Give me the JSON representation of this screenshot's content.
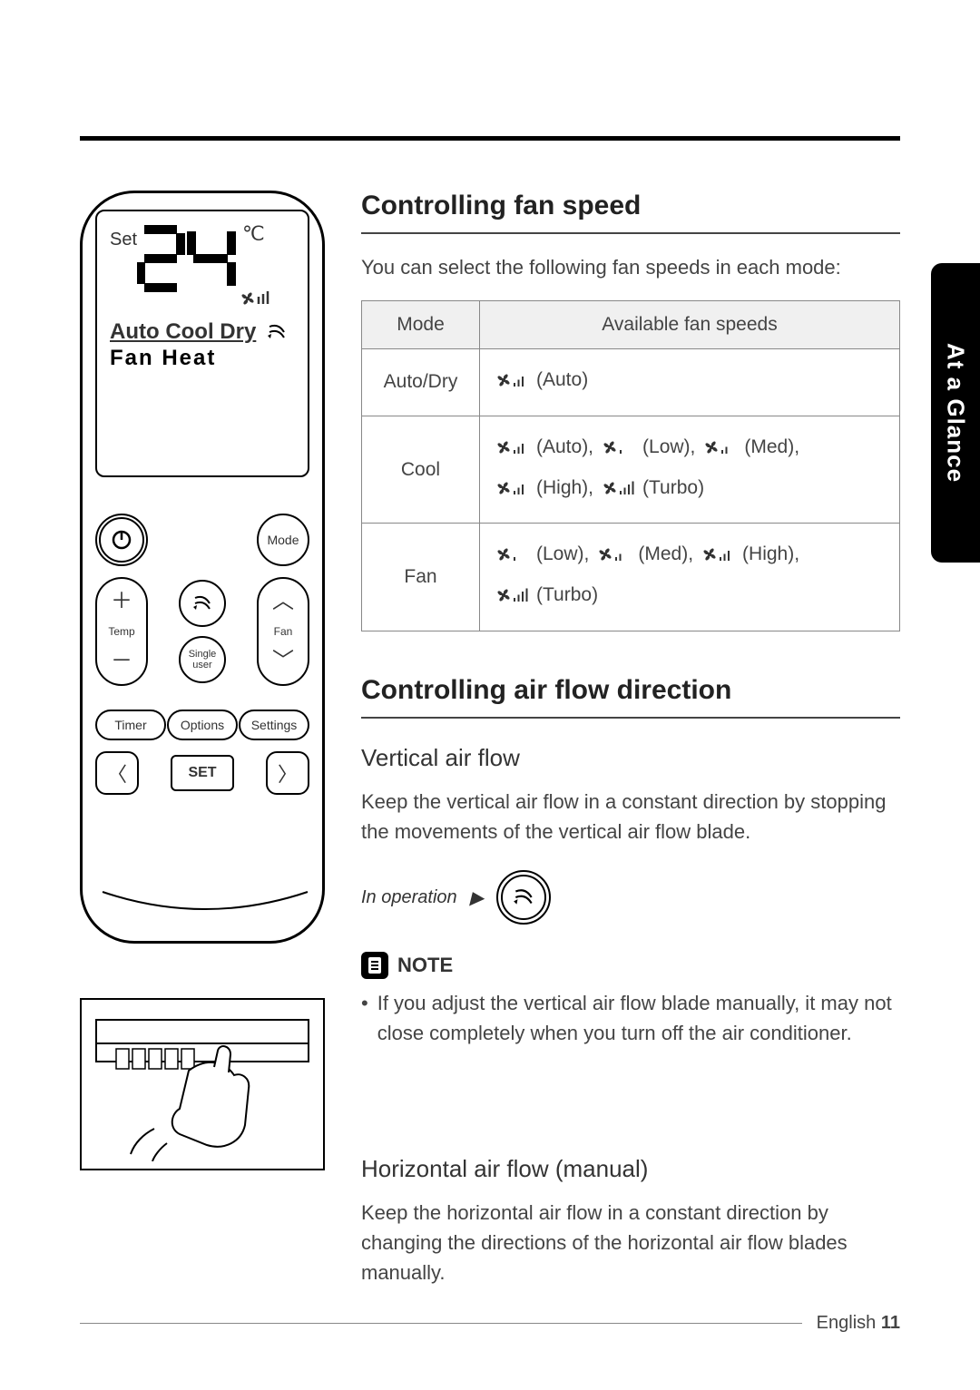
{
  "sideTab": "At a Glance",
  "remote": {
    "set": "Set",
    "temp": "24",
    "degC": "℃",
    "modesLine1": "Auto Cool Dry",
    "modesLine2": "Fan   Heat",
    "buttons": {
      "mode": "Mode",
      "temp": "Temp",
      "fan": "Fan",
      "singleUser": "Single\nuser",
      "timer": "Timer",
      "options": "Options",
      "settings": "Settings",
      "set": "SET"
    }
  },
  "sections": {
    "fanSpeed": {
      "title": "Controlling fan speed",
      "intro": "You can select the following fan speeds in each mode:",
      "table": {
        "header": {
          "col1": "Mode",
          "col2": "Available fan speeds"
        },
        "rows": [
          {
            "mode": "Auto/Dry",
            "speeds": [
              "(Auto)"
            ]
          },
          {
            "mode": "Cool",
            "speeds": [
              "(Auto),",
              "(Low),",
              "(Med),",
              "(High),",
              "(Turbo)"
            ]
          },
          {
            "mode": "Fan",
            "speeds": [
              "(Low),",
              "(Med),",
              "(High),",
              "(Turbo)"
            ]
          }
        ]
      }
    },
    "airflow": {
      "title": "Controlling air flow direction",
      "vertical": {
        "title": "Vertical air flow",
        "text": "Keep the vertical air flow in a constant direction by stopping the movements of the vertical air flow blade.",
        "opLabel": "In operation",
        "note": {
          "label": "NOTE",
          "bullet": "If you adjust the vertical air flow blade manually, it may not close completely when you turn off the air conditioner."
        }
      },
      "horizontal": {
        "title": "Horizontal air flow (manual)",
        "text": "Keep the horizontal air flow in a constant direction by changing the directions of the horizontal air flow blades manually."
      }
    }
  },
  "footer": {
    "lang": "English",
    "page": "11"
  },
  "colors": {
    "text": "#333333",
    "rule": "#000000",
    "tableBorder": "#888888",
    "tableHeaderBg": "#f0f0f0"
  }
}
